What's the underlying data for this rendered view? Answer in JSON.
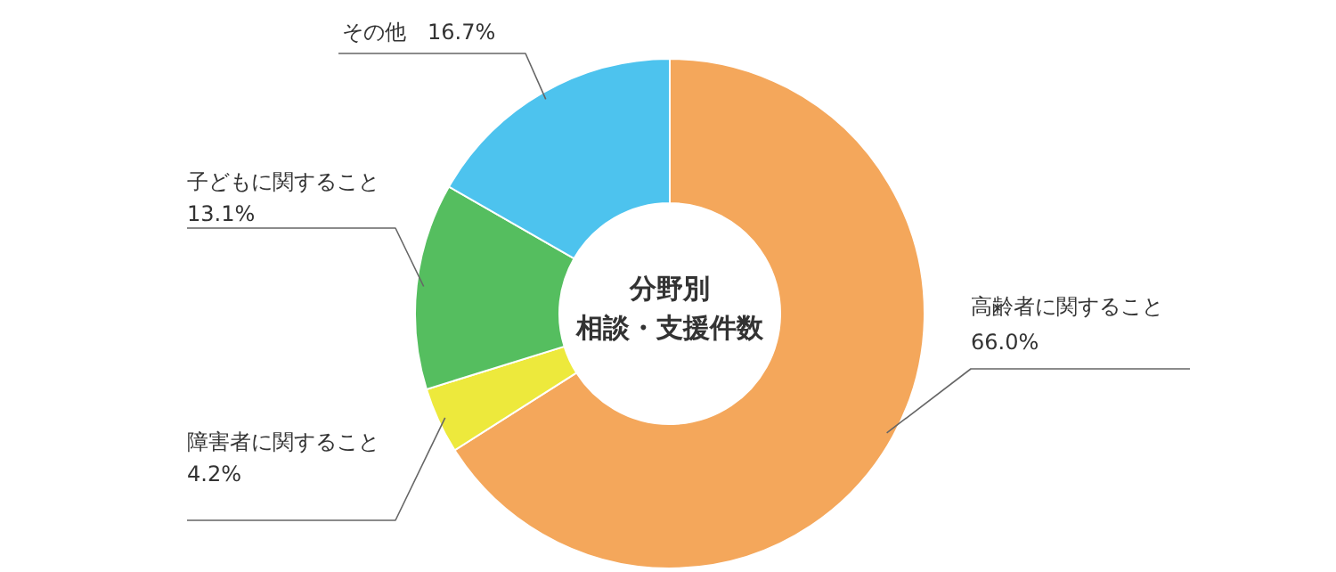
{
  "chart_data": {
    "type": "donut",
    "title": "分野別",
    "subtitle": "相談・支援件数",
    "categories": [
      "高齢者に関すること",
      "障害者に関すること",
      "子どもに関すること",
      "その他"
    ],
    "values": [
      66.0,
      4.2,
      13.1,
      16.7
    ],
    "colors": [
      "#f4a75b",
      "#ede93c",
      "#55be5f",
      "#4dc3ee"
    ],
    "value_labels": [
      "66.0%",
      "4.2%",
      "13.1%",
      "16.7%"
    ]
  }
}
